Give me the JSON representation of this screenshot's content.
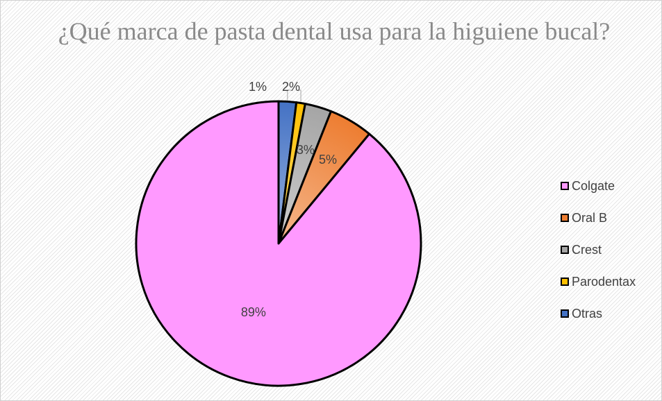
{
  "chart_data": {
    "type": "pie",
    "title": "¿Qué marca de pasta dental usa para la higuiene bucal?",
    "categories": [
      "Colgate",
      "Oral B",
      "Crest",
      "Parodentax",
      "Otras"
    ],
    "values": [
      89,
      5,
      3,
      1,
      2
    ],
    "labels": [
      "89%",
      "5%",
      "3%",
      "1%",
      "2%"
    ],
    "colors": [
      "#ff99ff",
      "#ed7d31",
      "#a5a5a5",
      "#ffc000",
      "#4472c4"
    ],
    "legend": "right"
  }
}
